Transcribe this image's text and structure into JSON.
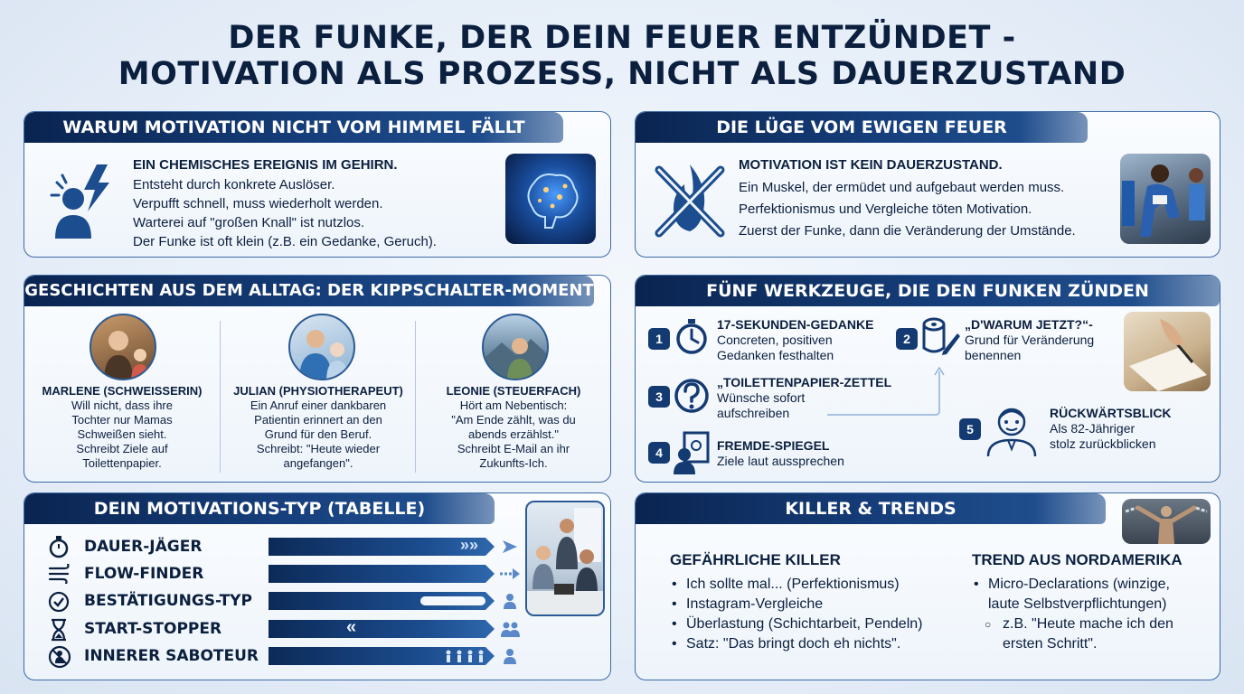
{
  "title": {
    "line1": "DER FUNKE, DER DEIN FEUER ENTZÜNDET -",
    "line2": "MOTIVATION ALS PROZESS, NICHT ALS DAUERZUSTAND"
  },
  "panel1": {
    "heading": "WARUM MOTIVATION NICHT VOM HIMMEL FÄLLT",
    "subheading": "EIN CHEMISCHES EREIGNIS IM GEHIRN.",
    "lines": [
      "Entsteht durch konkrete Auslöser.",
      "Verpufft schnell, muss wiederholt werden.",
      "Warterei auf \"großen Knall\" ist nutzlos.",
      "Der Funke ist oft klein (z.B. ein Gedanke, Geruch)."
    ],
    "icon": "person-lightning-icon",
    "image": "brain-icon"
  },
  "panel2": {
    "heading": "DIE LÜGE VOM EWIGEN FEUER",
    "subheading": "MOTIVATION IST KEIN DAUERZUSTAND.",
    "lines": [
      "Ein Muskel, der ermüdet und aufgebaut werden muss.",
      "Perfektionismus und Vergleiche töten Motivation.",
      "Zuerst der Funke, dann die Veränderung der Umstände."
    ],
    "icon": "crossed-flame-icon",
    "image": "runner-photo"
  },
  "panel3": {
    "heading": "GESCHICHTEN AUS DEM ALLTAG: DER KIPPSCHALTER-MOMENT",
    "people": [
      {
        "name": "MARLENE (SCHWEISSERIN)",
        "lines": [
          "Will nicht, dass ihre",
          "Tochter nur Mamas",
          "Schweißen sieht.",
          "Schreibt Ziele auf",
          "Toilettenpapier."
        ]
      },
      {
        "name": "JULIAN (PHYSIOTHERAPEUT)",
        "lines": [
          "Ein Anruf einer dankbaren",
          "Patientin erinnert an den",
          "Grund für den Beruf.",
          "Schreibt: \"Heute wieder",
          "angefangen\"."
        ]
      },
      {
        "name": "LEONIE (STEUERFACH)",
        "lines": [
          "Hört am Nebentisch:",
          "\"Am Ende zählt, was du",
          "abends erzählst.\"",
          "Schreibt E-Mail an ihr",
          "Zukunfts-Ich."
        ]
      }
    ]
  },
  "panel4": {
    "heading": "FÜNF WERKZEUGE, DIE DEN FUNKEN ZÜNDEN",
    "tools": [
      {
        "num": "1",
        "title": "17-SEKUNDEN-GEDANKE",
        "lines": [
          "Concreten, positiven",
          "Gedanken festhalten"
        ],
        "icon": "stopwatch-icon"
      },
      {
        "num": "2",
        "title": "„D'WARUM JETZT?“-",
        "lines": [
          "Grund für Veränderung",
          "benennen"
        ],
        "icon": "paper-roll-pen-icon"
      },
      {
        "num": "3",
        "title": "„TOILETTENPAPIER-ZETTEL",
        "lines": [
          "Wünsche sofort",
          "aufschreiben"
        ],
        "icon": "question-icon"
      },
      {
        "num": "4",
        "title": "FREMDE-SPIEGEL",
        "lines": [
          "Ziele laut aussprechen"
        ],
        "icon": "mirror-person-icon"
      },
      {
        "num": "5",
        "title": "RÜCKWÄRTSBLICK",
        "lines": [
          "Als 82-Jähriger",
          "stolz zurückblicken"
        ],
        "icon": "old-man-icon"
      }
    ]
  },
  "panel5": {
    "heading": "DEIN MOTIVATIONS-TYP (TABELLE)",
    "rows": [
      {
        "label": "DAUER-JÄGER",
        "icon": "stopwatch-icon",
        "marker": "»»",
        "side": "arrow-right-icon"
      },
      {
        "label": "FLOW-FINDER",
        "icon": "wind-icon",
        "marker": "",
        "side": "dotted-arrow-icon"
      },
      {
        "label": "BESTÄTIGUNGS-TYP",
        "icon": "check-circle-icon",
        "marker": "",
        "side": "person-icon"
      },
      {
        "label": "START-STOPPER",
        "icon": "hourglass-icon",
        "marker": "«",
        "side": "people-icon"
      },
      {
        "label": "INNERER SABOTEUR",
        "icon": "saboteur-icon",
        "marker": "",
        "side": "person-icon"
      }
    ]
  },
  "panel6": {
    "heading": "KILLER & TRENDS",
    "left_heading": "GEFÄHRLICHE KILLER",
    "left_items": [
      "Ich sollte mal... (Perfektionismus)",
      "Instagram-Vergleiche",
      "Überlastung (Schichtarbeit, Pendeln)",
      "Satz: \"Das bringt doch eh nichts\"."
    ],
    "right_heading": "TREND AUS NORDAMERIKA",
    "right_items": [
      "Micro-Declarations (winzige,",
      "laute Selbstverpflichtungen)"
    ],
    "right_sub": [
      "z.B. \"Heute mache ich den",
      "ersten Schritt\"."
    ]
  },
  "colors": {
    "navy": "#0b1f3e",
    "accent": "#1c4d8f",
    "border": "#3e6aa6"
  }
}
